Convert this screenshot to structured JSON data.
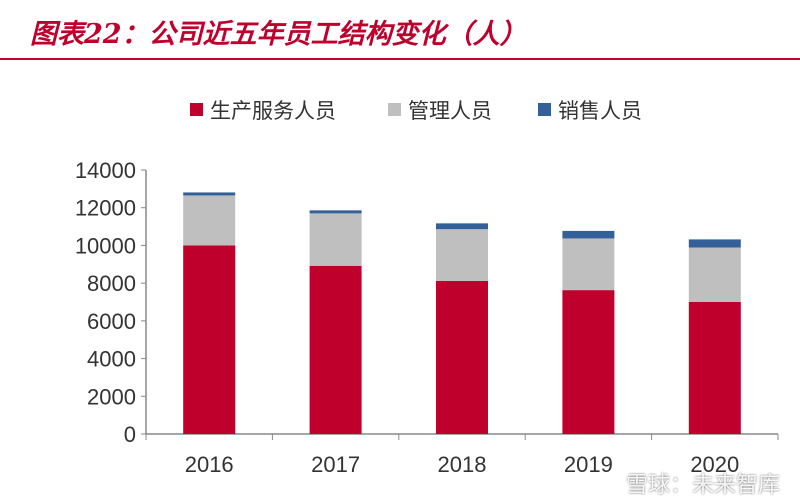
{
  "title": "图表22：公司近五年员工结构变化（人）",
  "watermark": "雪球：未来智库",
  "chart_data": {
    "type": "bar",
    "stacked": true,
    "title": "",
    "xlabel": "",
    "ylabel": "",
    "categories": [
      "2016",
      "2017",
      "2018",
      "2019",
      "2020"
    ],
    "series": [
      {
        "name": "生产服务人员",
        "color": "#c0002c",
        "values": [
          10000,
          8920,
          8120,
          7630,
          7000
        ]
      },
      {
        "name": "管理人员",
        "color": "#bfbfbf",
        "values": [
          2650,
          2780,
          2740,
          2740,
          2890
        ]
      },
      {
        "name": "销售人员",
        "color": "#34609a",
        "values": [
          160,
          160,
          310,
          400,
          430
        ]
      }
    ],
    "ylim": [
      0,
      14000
    ],
    "yticks": [
      "0",
      "2000",
      "4000",
      "6000",
      "8000",
      "10000",
      "12000",
      "14000"
    ],
    "grid": false,
    "legend": "top"
  }
}
